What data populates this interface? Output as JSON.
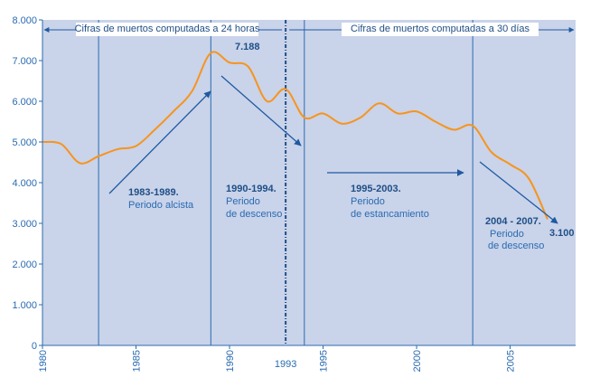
{
  "chart_data": {
    "type": "line",
    "x": [
      1980,
      1981,
      1982,
      1983,
      1984,
      1985,
      1986,
      1987,
      1988,
      1989,
      1990,
      1991,
      1992,
      1993,
      1994,
      1995,
      1996,
      1997,
      1998,
      1999,
      2000,
      2001,
      2002,
      2003,
      2004,
      2005,
      2006,
      2007
    ],
    "values": [
      5000,
      4950,
      4480,
      4650,
      4820,
      4900,
      5300,
      5750,
      6250,
      7188,
      6950,
      6850,
      6000,
      6300,
      5600,
      5700,
      5450,
      5600,
      5950,
      5700,
      5750,
      5500,
      5300,
      5400,
      4750,
      4450,
      4100,
      3100
    ],
    "xlim": [
      1980,
      2008.5
    ],
    "ylim": [
      0,
      8000
    ],
    "y_ticks": [
      0,
      1000,
      2000,
      3000,
      4000,
      5000,
      6000,
      7000,
      8000
    ],
    "y_tick_labels": [
      "0",
      "1.000",
      "2.000",
      "3.000",
      "4.000",
      "5.000",
      "6.000",
      "7.000",
      "8.000"
    ],
    "x_ticks": [
      1980,
      1985,
      1990,
      1995,
      2000,
      2005
    ],
    "x_tick_labels": [
      "1980",
      "1985",
      "1990",
      "1995",
      "2000",
      "2005"
    ],
    "special_x_label": "1993",
    "line_color": "#f7941d",
    "plot_background": "#c9d3ea",
    "axis_color": "#2a6bb0",
    "grid": false,
    "divider_years": [
      1983,
      1989,
      1993,
      1994,
      2003
    ],
    "banners": {
      "left": "Cifras de muertos computadas a 24 horas",
      "right": "Cifras de muertos computadas a 30 días"
    },
    "annotations": {
      "peak_value": "7.188",
      "end_value": "3.100",
      "p1_title": "1983-1989.",
      "p1_desc": "Periodo alcista",
      "p2_title": "1990-1994.",
      "p2_line1": "Periodo",
      "p2_line2": "de descenso",
      "p3_title": "1995-2003.",
      "p3_line1": "Periodo",
      "p3_line2": "de estancamiento",
      "p4_title": "2004 - 2007.",
      "p4_line1": "Periodo",
      "p4_line2": "de descenso"
    }
  }
}
